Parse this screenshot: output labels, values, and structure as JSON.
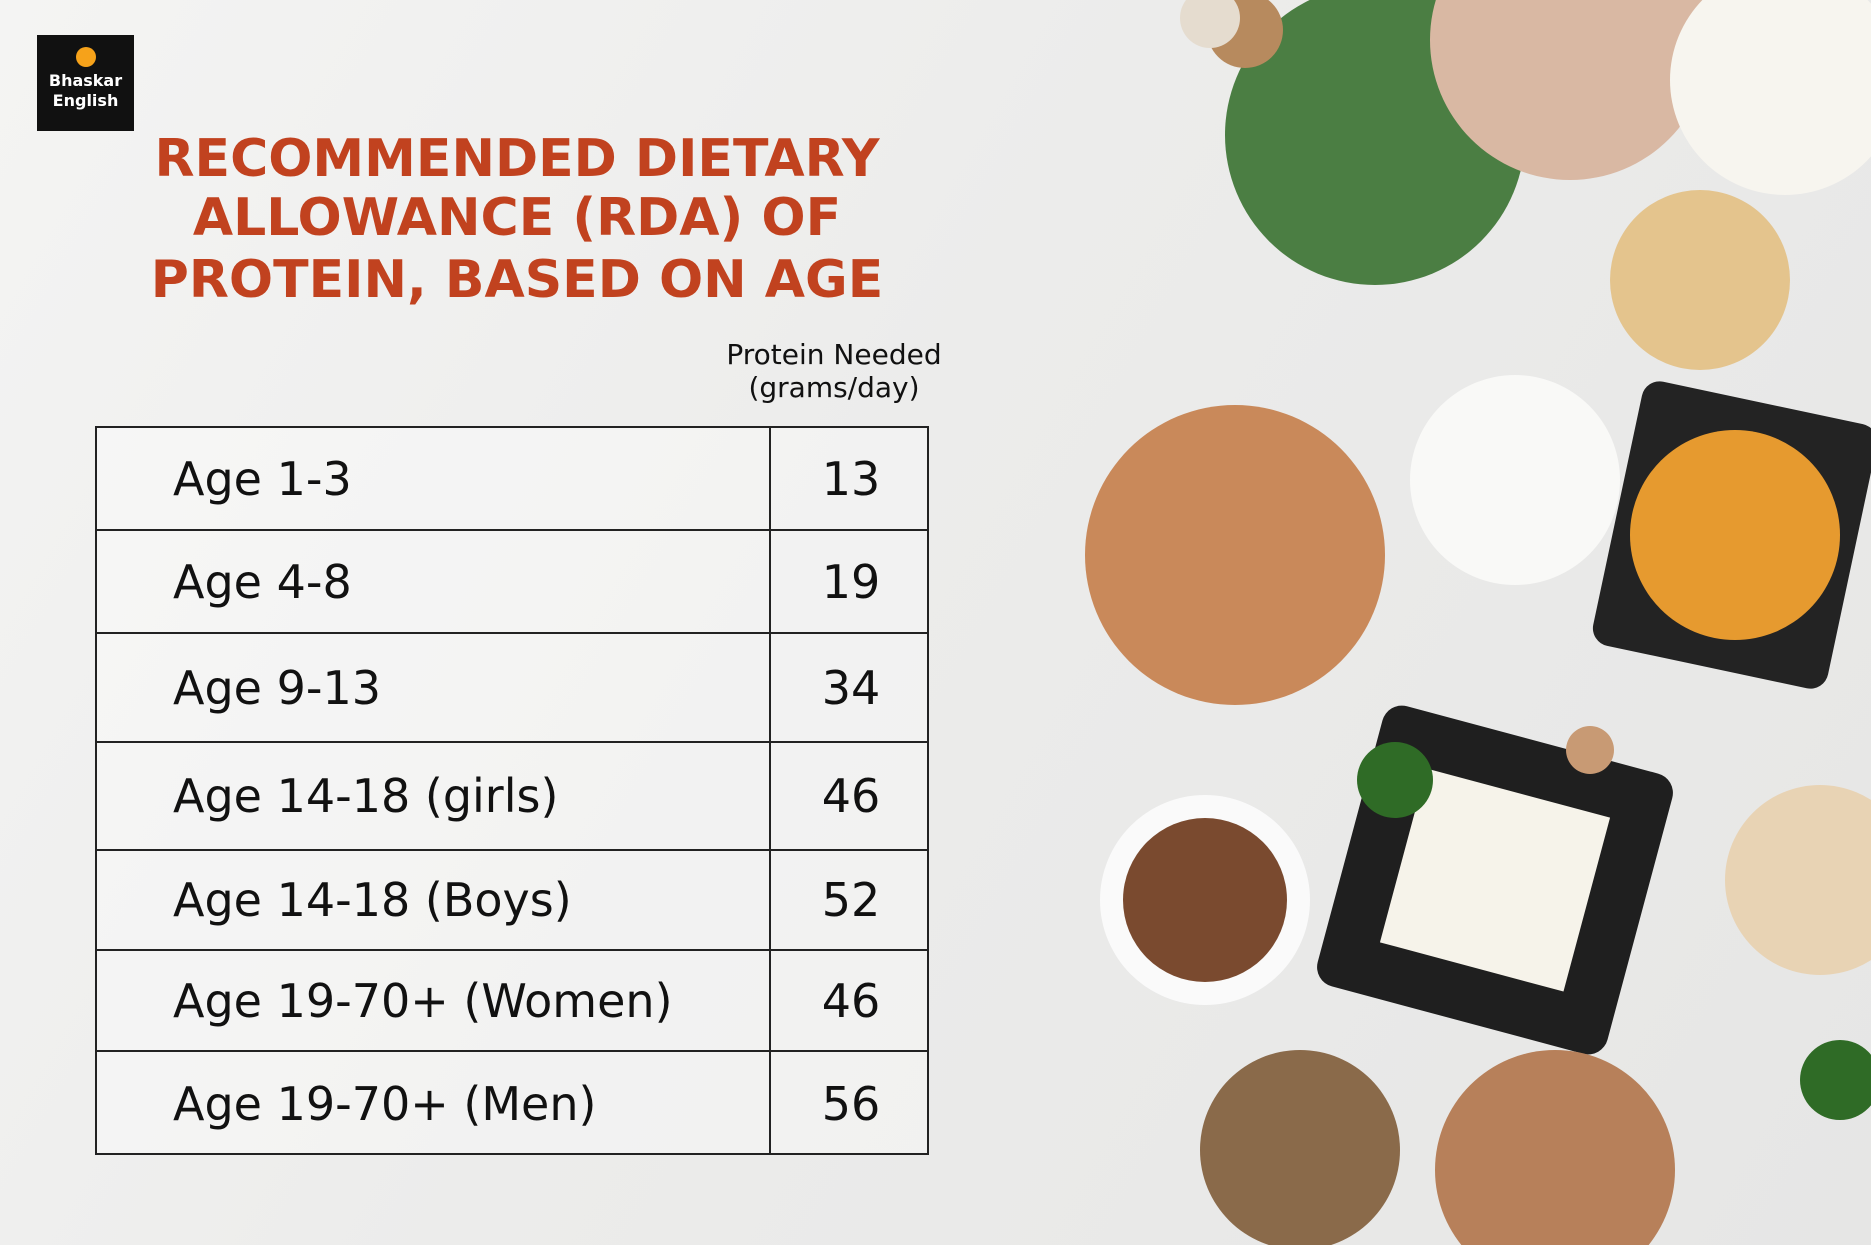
{
  "logo": {
    "line1": "Bhaskar",
    "line2": "English"
  },
  "title": [
    "RECOMMENDED DIETARY",
    "ALLOWANCE (RDA) OF",
    "PROTEIN, BASED ON AGE"
  ],
  "table": {
    "header": [
      "Protein Needed",
      "(grams/day)"
    ],
    "rows": [
      [
        "Age 1-3",
        13
      ],
      [
        "Age 4-8",
        19
      ],
      [
        "Age 9-13",
        34
      ],
      [
        "Age 14-18 (girls)",
        46
      ],
      [
        "Age 14-18 (Boys)",
        52
      ],
      [
        "Age 19-70+ (Women)",
        46
      ],
      [
        "Age 19-70+ (Men)",
        56
      ]
    ]
  }
}
